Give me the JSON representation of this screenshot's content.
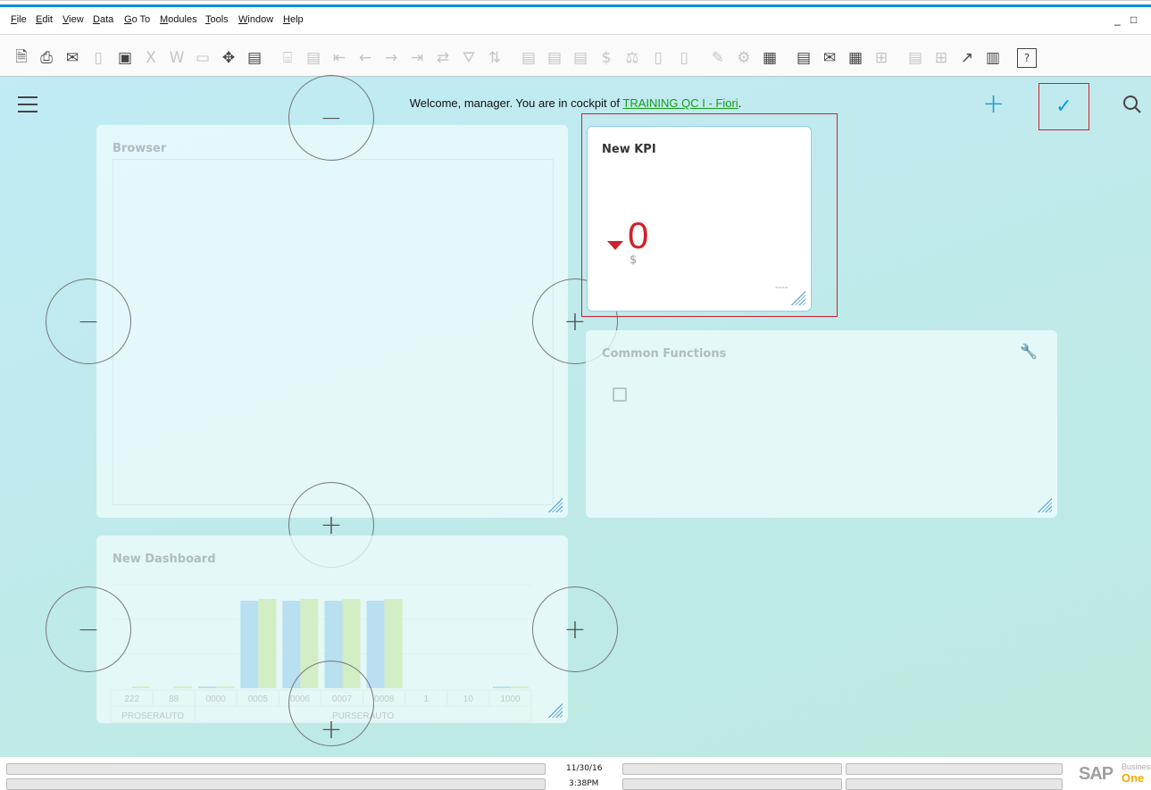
{
  "menu": [
    "File",
    "Edit",
    "View",
    "Data",
    "Go To",
    "Modules",
    "Tools",
    "Window",
    "Help"
  ],
  "window_controls": {
    "minimize": "_",
    "maximize": "□"
  },
  "toolbar": [
    {
      "icon": "preview-icon",
      "enabled": true,
      "glyph": "🗎"
    },
    {
      "icon": "print-icon",
      "enabled": true,
      "glyph": "⎙"
    },
    {
      "icon": "email-icon",
      "enabled": true,
      "glyph": "✉"
    },
    {
      "icon": "sms-icon",
      "enabled": false,
      "glyph": "▯"
    },
    {
      "icon": "fax-icon",
      "enabled": true,
      "glyph": "▣"
    },
    {
      "icon": "excel-icon",
      "enabled": false,
      "glyph": "X"
    },
    {
      "icon": "word-icon",
      "enabled": false,
      "glyph": "W"
    },
    {
      "icon": "pdf-icon",
      "enabled": false,
      "glyph": "▭"
    },
    {
      "icon": "move-icon",
      "enabled": true,
      "glyph": "✥"
    },
    {
      "icon": "form-lock-icon",
      "enabled": true,
      "glyph": "▤"
    },
    {
      "icon": "find-icon",
      "enabled": false,
      "glyph": "⌸"
    },
    {
      "icon": "add-icon",
      "enabled": false,
      "glyph": "▤"
    },
    {
      "icon": "first-record-icon",
      "enabled": false,
      "glyph": "⇤"
    },
    {
      "icon": "previous-record-icon",
      "enabled": false,
      "glyph": "←"
    },
    {
      "icon": "next-record-icon",
      "enabled": false,
      "glyph": "→"
    },
    {
      "icon": "last-record-icon",
      "enabled": false,
      "glyph": "⇥"
    },
    {
      "icon": "refresh-icon",
      "enabled": false,
      "glyph": "⇄"
    },
    {
      "icon": "filter-icon",
      "enabled": false,
      "glyph": "⛛"
    },
    {
      "icon": "sort-icon",
      "enabled": false,
      "glyph": "⇅"
    },
    {
      "icon": "base-document-icon",
      "enabled": false,
      "glyph": "▤"
    },
    {
      "icon": "target-document-icon",
      "enabled": false,
      "glyph": "▤"
    },
    {
      "icon": "payment-icon",
      "enabled": false,
      "glyph": "▤"
    },
    {
      "icon": "payment-means-icon",
      "enabled": false,
      "glyph": "$"
    },
    {
      "icon": "balance-icon",
      "enabled": false,
      "glyph": "⚖"
    },
    {
      "icon": "gross-profit-icon",
      "enabled": false,
      "glyph": "▯"
    },
    {
      "icon": "transaction-journal-icon",
      "enabled": false,
      "glyph": "▯"
    },
    {
      "icon": "edit-icon",
      "enabled": false,
      "glyph": "✎"
    },
    {
      "icon": "settings-icon",
      "enabled": false,
      "glyph": "⚙"
    },
    {
      "icon": "query-icon",
      "enabled": true,
      "glyph": "▦"
    },
    {
      "icon": "alerts-icon",
      "enabled": true,
      "glyph": "▤"
    },
    {
      "icon": "messages-icon",
      "enabled": true,
      "glyph": "✉"
    },
    {
      "icon": "calendar-icon",
      "enabled": true,
      "glyph": "▦"
    },
    {
      "icon": "relationship-map-icon",
      "enabled": false,
      "glyph": "⊞"
    },
    {
      "icon": "dashboard-icon",
      "enabled": false,
      "glyph": "▤"
    },
    {
      "icon": "widgets-icon",
      "enabled": false,
      "glyph": "⊞"
    },
    {
      "icon": "trend-icon",
      "enabled": true,
      "glyph": "↗"
    },
    {
      "icon": "report-icon",
      "enabled": true,
      "glyph": "▥"
    },
    {
      "icon": "help-icon",
      "enabled": true,
      "glyph": "?"
    }
  ],
  "cockpit": {
    "welcome_prefix": "Welcome, manager. You are in cockpit of ",
    "cockpit_name": "TRAINING QC I - Fiori",
    "welcome_suffix": ".",
    "add_glyph": "+",
    "done_glyph": "✓"
  },
  "tiles": {
    "browser": {
      "title": "Browser"
    },
    "kpi": {
      "title": "New KPI",
      "value": "0",
      "unit": "$",
      "trend": "down",
      "footer": "----",
      "color": "#d0212a"
    },
    "common_functions": {
      "title": "Common Functions"
    },
    "dashboard": {
      "title": "New Dashboard"
    }
  },
  "chart_data": {
    "type": "bar",
    "categories": [
      "222",
      "88",
      "0000",
      "0005",
      "0006",
      "0007",
      "0008",
      "1",
      "10",
      "1000"
    ],
    "groups": [
      {
        "label": "PROSERAUTO"
      },
      {
        "label": "PURSERAUTO"
      }
    ],
    "series": [
      {
        "color": "#b9e0f0",
        "values": [
          0,
          0,
          1,
          98,
          98,
          98,
          98,
          0,
          0,
          1
        ]
      },
      {
        "color": "#d3edc4",
        "values": [
          1,
          1,
          1,
          100,
          100,
          100,
          100,
          0,
          0,
          1
        ]
      }
    ],
    "ylim": [
      0,
      100
    ],
    "grid": true
  },
  "status": {
    "date": "11/30/16",
    "time": "3:38PM",
    "brand": "SAP",
    "brand_sub1": "Business",
    "brand_sub2": "One"
  }
}
